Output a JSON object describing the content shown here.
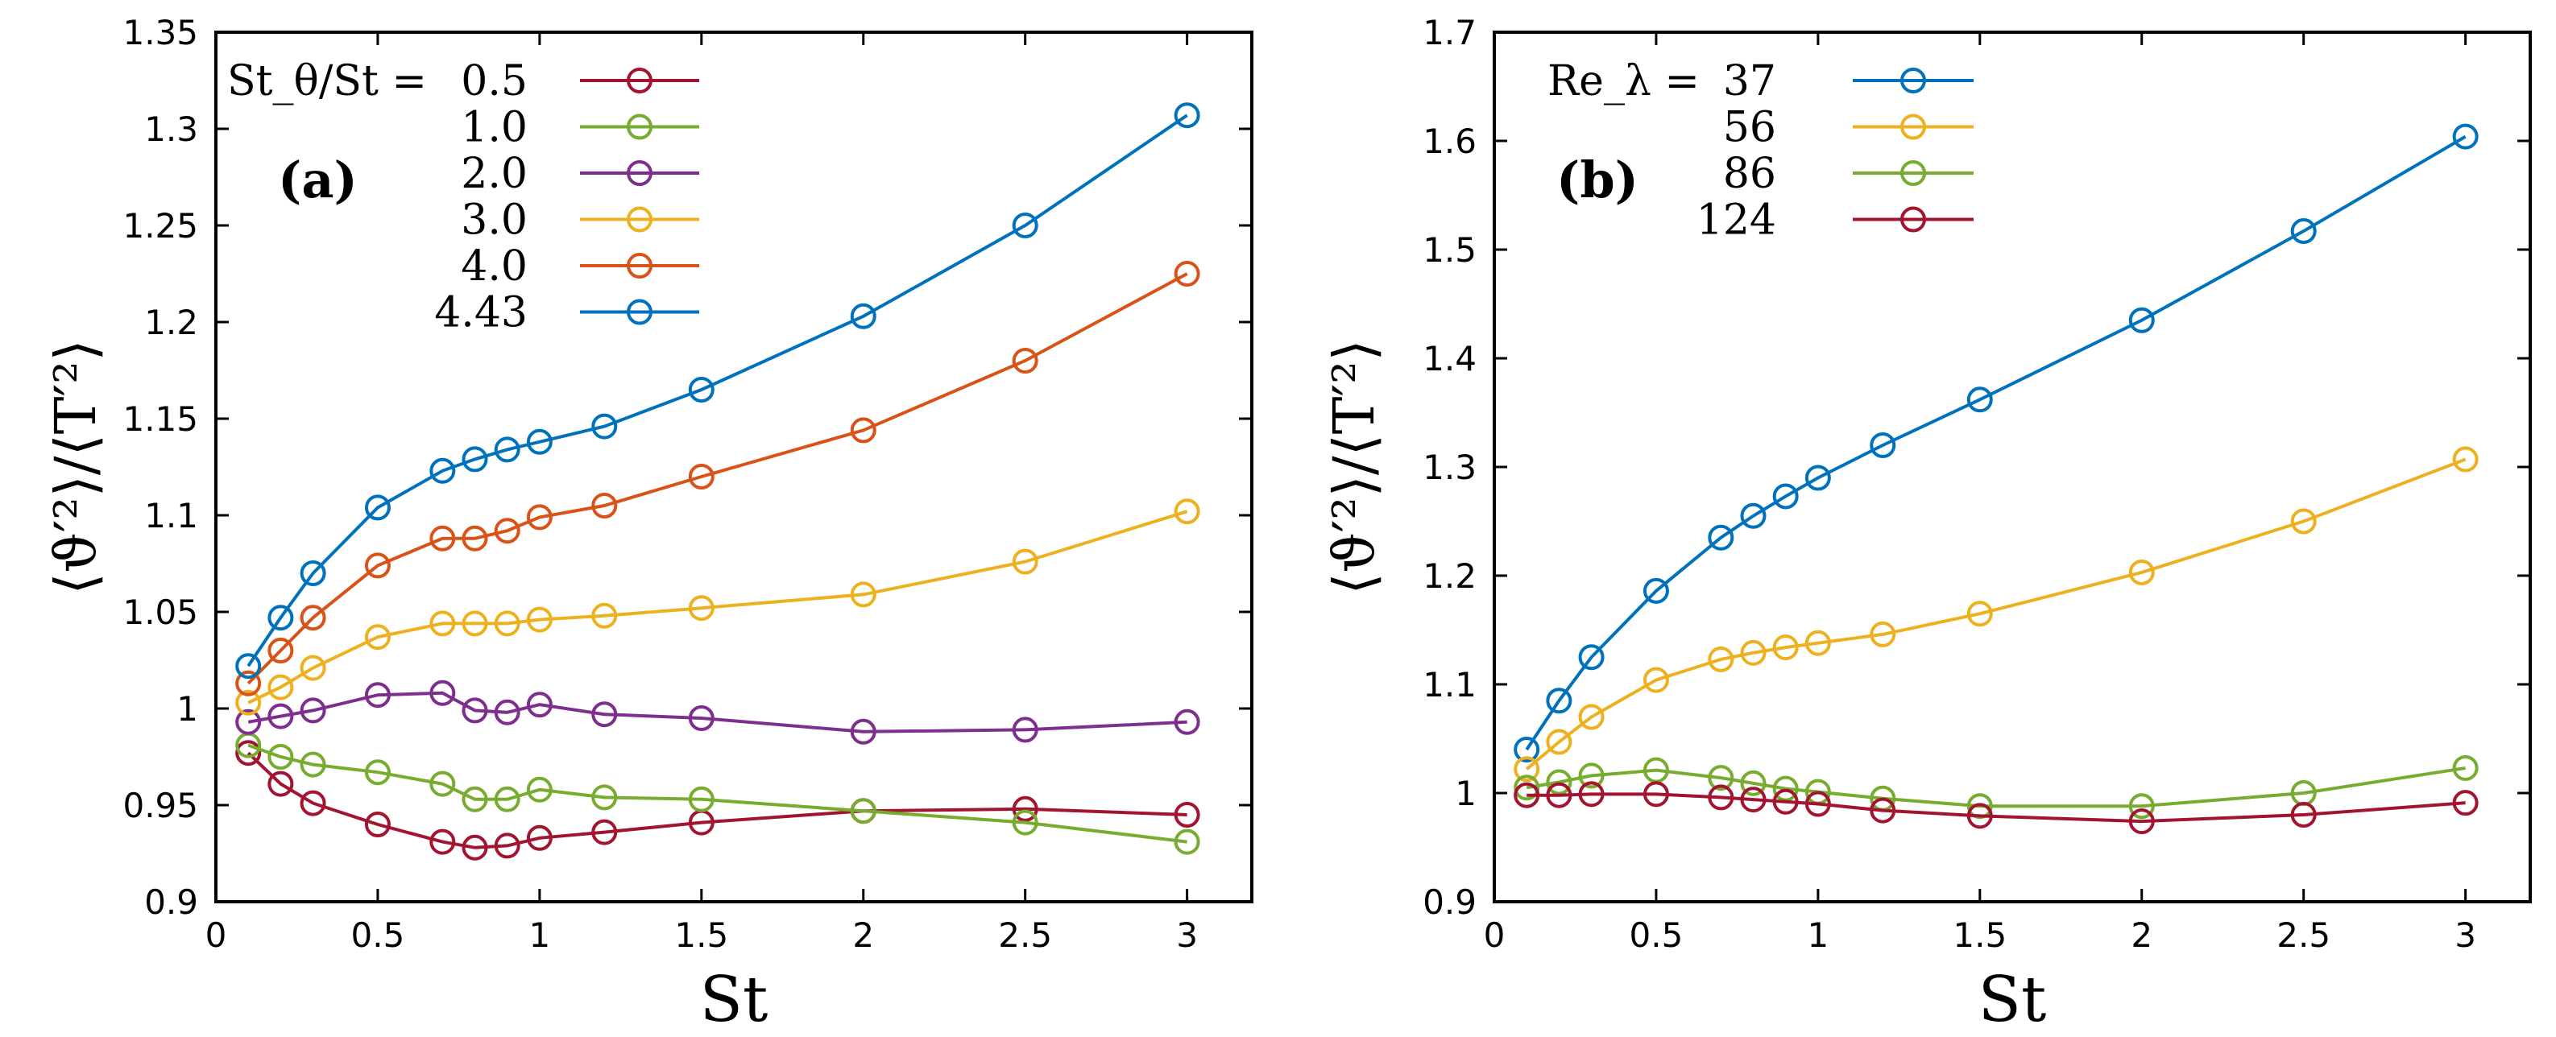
{
  "chart_data": [
    {
      "type": "line",
      "panel_label": "(a)",
      "xlabel": "St",
      "ylabel": "⟨ϑ′²⟩/⟨T′²⟩",
      "xlim": [
        0,
        3.2
      ],
      "ylim": [
        0.9,
        1.35
      ],
      "xticks": [
        0,
        0.5,
        1,
        1.5,
        2,
        2.5,
        3
      ],
      "xtick_labels": [
        "0",
        "0.5",
        "1",
        "1.5",
        "2",
        "2.5",
        "3"
      ],
      "yticks": [
        0.9,
        0.95,
        1.0,
        1.05,
        1.1,
        1.15,
        1.2,
        1.25,
        1.3,
        1.35
      ],
      "ytick_labels": [
        "0.9",
        "0.95",
        "1",
        "1.05",
        "1.1",
        "1.15",
        "1.2",
        "1.25",
        "1.3",
        "1.35"
      ],
      "legend_title": "St_θ/St = ",
      "legend_position": "top-left",
      "x": [
        0.1,
        0.2,
        0.3,
        0.5,
        0.7,
        0.8,
        0.9,
        1.0,
        1.2,
        1.5,
        2.0,
        2.5,
        3.0
      ],
      "series": [
        {
          "name": "0.5",
          "label": "0.5",
          "color": "#a2142f",
          "values": [
            0.977,
            0.961,
            0.951,
            0.94,
            0.931,
            0.928,
            0.929,
            0.933,
            0.936,
            0.941,
            0.947,
            0.948,
            0.945
          ]
        },
        {
          "name": "1.0",
          "label": "1.0",
          "color": "#77ac30",
          "values": [
            0.981,
            0.975,
            0.971,
            0.967,
            0.961,
            0.953,
            0.953,
            0.958,
            0.954,
            0.953,
            0.947,
            0.941,
            0.931
          ]
        },
        {
          "name": "2.0",
          "label": "2.0",
          "color": "#7e2f8e",
          "values": [
            0.993,
            0.996,
            0.999,
            1.007,
            1.008,
            0.999,
            0.998,
            1.002,
            0.997,
            0.995,
            0.988,
            0.989,
            0.993
          ]
        },
        {
          "name": "3.0",
          "label": "3.0",
          "color": "#edb120",
          "values": [
            1.003,
            1.011,
            1.021,
            1.037,
            1.044,
            1.044,
            1.044,
            1.046,
            1.048,
            1.052,
            1.059,
            1.076,
            1.102
          ]
        },
        {
          "name": "4.0",
          "label": "4.0",
          "color": "#d95319",
          "values": [
            1.013,
            1.03,
            1.047,
            1.074,
            1.088,
            1.088,
            1.092,
            1.099,
            1.105,
            1.12,
            1.144,
            1.18,
            1.225
          ]
        },
        {
          "name": "4.43",
          "label": "4.43",
          "color": "#0072bd",
          "values": [
            1.022,
            1.047,
            1.07,
            1.104,
            1.123,
            1.129,
            1.134,
            1.138,
            1.146,
            1.165,
            1.203,
            1.25,
            1.307
          ]
        }
      ]
    },
    {
      "type": "line",
      "panel_label": "(b)",
      "xlabel": "St",
      "ylabel": "⟨ϑ′²⟩/⟨T′²⟩",
      "xlim": [
        0,
        3.2
      ],
      "ylim": [
        0.9,
        1.7
      ],
      "xticks": [
        0,
        0.5,
        1,
        1.5,
        2,
        2.5,
        3
      ],
      "xtick_labels": [
        "0",
        "0.5",
        "1",
        "1.5",
        "2",
        "2.5",
        "3"
      ],
      "yticks": [
        0.9,
        1.0,
        1.1,
        1.2,
        1.3,
        1.4,
        1.5,
        1.6,
        1.7
      ],
      "ytick_labels": [
        "0.9",
        "1",
        "1.1",
        "1.2",
        "1.3",
        "1.4",
        "1.5",
        "1.6",
        "1.7"
      ],
      "legend_title": "Re_λ = ",
      "legend_position": "top-left",
      "x": [
        0.1,
        0.2,
        0.3,
        0.5,
        0.7,
        0.8,
        0.9,
        1.0,
        1.2,
        1.5,
        2.0,
        2.5,
        3.0
      ],
      "series": [
        {
          "name": "37",
          "label": "37",
          "color": "#0072bd",
          "values": [
            1.04,
            1.085,
            1.125,
            1.186,
            1.235,
            1.255,
            1.273,
            1.29,
            1.32,
            1.362,
            1.435,
            1.517,
            1.604
          ]
        },
        {
          "name": "56",
          "label": "56",
          "color": "#edb120",
          "values": [
            1.022,
            1.047,
            1.07,
            1.104,
            1.123,
            1.129,
            1.134,
            1.138,
            1.146,
            1.165,
            1.203,
            1.25,
            1.307
          ]
        },
        {
          "name": "86",
          "label": "86",
          "color": "#77ac30",
          "values": [
            1.005,
            1.01,
            1.016,
            1.021,
            1.014,
            1.009,
            1.004,
            1.001,
            0.995,
            0.988,
            0.988,
            1.0,
            1.023
          ]
        },
        {
          "name": "124",
          "label": "124",
          "color": "#a2142f",
          "values": [
            0.998,
            0.998,
            0.999,
            0.999,
            0.996,
            0.994,
            0.992,
            0.99,
            0.984,
            0.979,
            0.974,
            0.98,
            0.991
          ]
        }
      ]
    }
  ]
}
